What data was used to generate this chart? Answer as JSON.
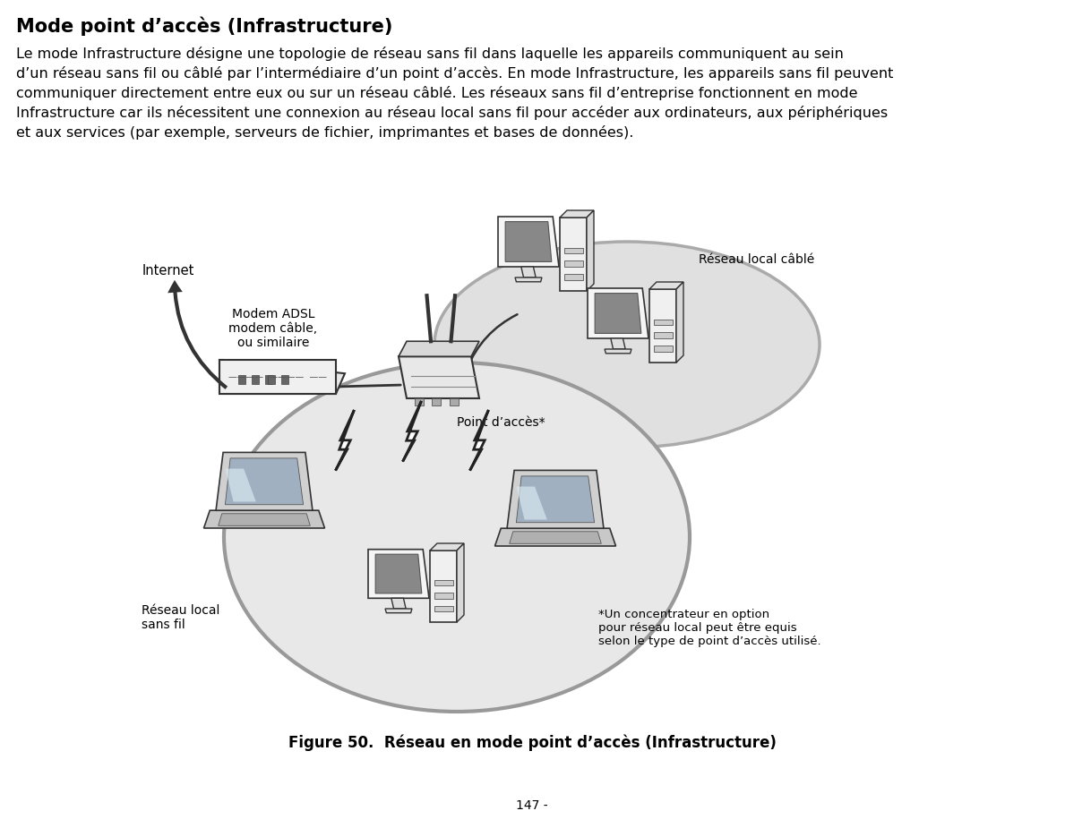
{
  "title": "Mode point d’accès (Infrastructure)",
  "body_line1": "Le mode Infrastructure désigne une topologie de réseau sans fil dans laquelle les appareils communiquent au sein",
  "body_line2": "d’un réseau sans fil ou câblé par l’intermédiaire d’un point d’accès. En mode Infrastructure, les appareils sans fil peuvent",
  "body_line3": "communiquer directement entre eux ou sur un réseau câblé. Les réseaux sans fil d’entreprise fonctionnent en mode",
  "body_line4": "Infrastructure car ils nécessitent une connexion au réseau local sans fil pour accéder aux ordinateurs, aux périphériques",
  "body_line5": "et aux services (par exemple, serveurs de fichier, imprimantes et bases de données).",
  "label_internet": "Internet",
  "label_modem": "Modem ADSL\nmodem câble,\nou similaire",
  "label_reseau_cable": "Réseau local câblé",
  "label_point_acces": "Point d’accès*",
  "label_reseau_fil": "Réseau local\nsans fil",
  "label_note": "*Un concentrateur en option\npour réseau local peut être equis\nselon le type de point d’accès utilisé.",
  "figure_caption": "Figure 50.  Réseau en mode point d’accès (Infrastructure)",
  "page_number": "147 -",
  "bg_color": "#ffffff",
  "text_color": "#000000"
}
